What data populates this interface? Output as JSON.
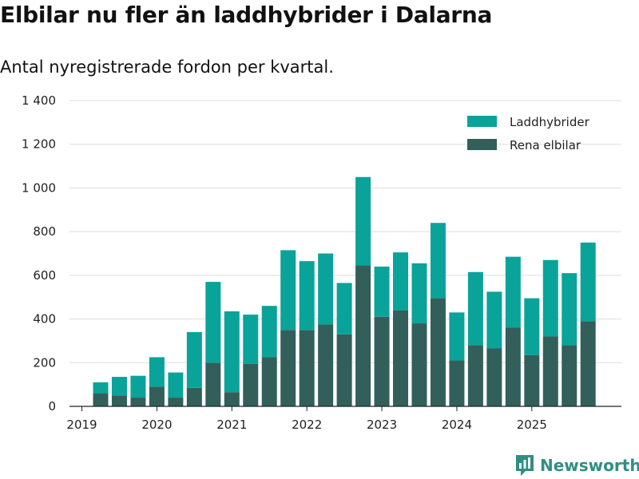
{
  "title": "Elbilar nu fler än laddhybrider i Dalarna",
  "subtitle": "Antal nyregistrerade fordon per kvartal.",
  "brand": "Newsworthy",
  "colors": {
    "laddhybrider": "#0aa39a",
    "elbilar": "#325f5a",
    "grid": "#dddddd",
    "brand": "#2f8f83"
  },
  "chart_data": {
    "type": "bar",
    "stacked": true,
    "ylim": [
      0,
      1400
    ],
    "yticks": [
      0,
      200,
      400,
      600,
      800,
      1000,
      1200,
      1400
    ],
    "ytick_labels": [
      "0",
      "200",
      "400",
      "600",
      "800",
      "1 000",
      "1 200",
      "1 400"
    ],
    "xtick_labels": [
      "2019",
      "2020",
      "2021",
      "2022",
      "2023",
      "2024",
      "2025"
    ],
    "legend": [
      "Laddhybrider",
      "Rena elbilar"
    ],
    "legend_position": "top-right",
    "categories": [
      "2019 Q2",
      "2019 Q3",
      "2019 Q4",
      "2020 Q1",
      "2020 Q2",
      "2020 Q3",
      "2020 Q4",
      "2021 Q1",
      "2021 Q2",
      "2021 Q3",
      "2021 Q4",
      "2022 Q1",
      "2022 Q2",
      "2022 Q3",
      "2022 Q4",
      "2023 Q1",
      "2023 Q2",
      "2023 Q3",
      "2023 Q4",
      "2024 Q1",
      "2024 Q2",
      "2024 Q3",
      "2024 Q4",
      "2025 Q1",
      "2025 Q2",
      "2025 Q3",
      "2025 Q4"
    ],
    "series": [
      {
        "name": "Rena elbilar",
        "values": [
          60,
          50,
          40,
          90,
          40,
          85,
          200,
          65,
          195,
          225,
          350,
          350,
          375,
          330,
          645,
          410,
          440,
          380,
          495,
          210,
          280,
          265,
          360,
          235,
          320,
          280,
          390
        ]
      },
      {
        "name": "Laddhybrider",
        "values": [
          50,
          85,
          100,
          135,
          115,
          255,
          370,
          370,
          225,
          235,
          365,
          315,
          325,
          235,
          405,
          230,
          265,
          275,
          345,
          220,
          335,
          260,
          325,
          260,
          350,
          330,
          360
        ]
      }
    ]
  }
}
